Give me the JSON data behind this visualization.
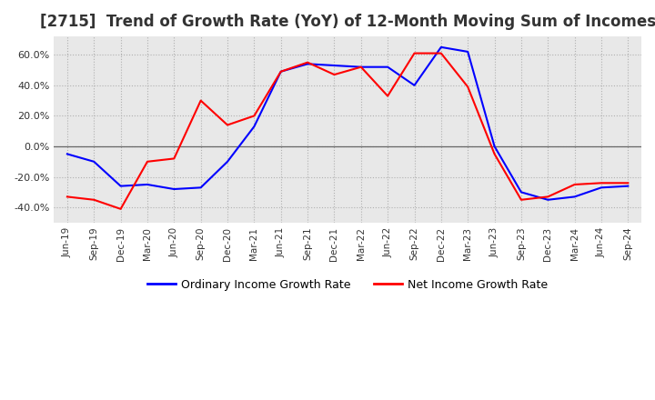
{
  "title": "[2715]  Trend of Growth Rate (YoY) of 12-Month Moving Sum of Incomes",
  "title_fontsize": 12,
  "legend_labels": [
    "Ordinary Income Growth Rate",
    "Net Income Growth Rate"
  ],
  "legend_colors": [
    "#0000ff",
    "#ff0000"
  ],
  "x_labels": [
    "Jun-19",
    "Sep-19",
    "Dec-19",
    "Mar-20",
    "Jun-20",
    "Sep-20",
    "Dec-20",
    "Mar-21",
    "Jun-21",
    "Sep-21",
    "Dec-21",
    "Mar-22",
    "Jun-22",
    "Sep-22",
    "Dec-22",
    "Mar-23",
    "Jun-23",
    "Sep-23",
    "Dec-23",
    "Mar-24",
    "Jun-24",
    "Sep-24"
  ],
  "ordinary_income_growth": [
    -5.0,
    -10.0,
    -26.0,
    -25.0,
    -28.0,
    -27.0,
    -10.0,
    13.0,
    49.0,
    54.0,
    53.0,
    52.0,
    52.0,
    40.0,
    65.0,
    62.0,
    0.0,
    -30.0,
    -35.0,
    -33.0,
    -27.0,
    -26.0
  ],
  "net_income_growth": [
    -33.0,
    -35.0,
    -41.0,
    -10.0,
    -8.0,
    30.0,
    14.0,
    20.0,
    49.0,
    55.0,
    47.0,
    52.0,
    33.0,
    61.0,
    61.0,
    39.0,
    -5.0,
    -35.0,
    -33.0,
    -25.0,
    -24.0,
    -24.0
  ],
  "ylim": [
    -50,
    72
  ],
  "yticks": [
    -40.0,
    -20.0,
    0.0,
    20.0,
    40.0,
    60.0
  ],
  "background_color": "#ffffff",
  "plot_background": "#e8e8e8",
  "grid_color": "#b0b0b0",
  "line_width": 1.5
}
